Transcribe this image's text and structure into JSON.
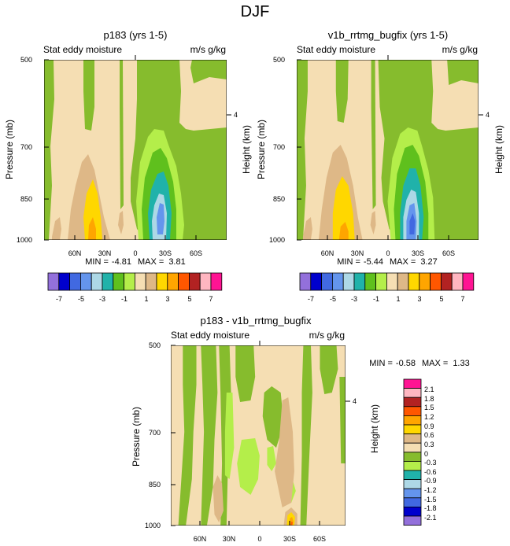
{
  "figure_title": "DJF",
  "colors": {
    "palette_panels": [
      "#9370db",
      "#0000cd",
      "#4169e1",
      "#6495ed",
      "#add8e6",
      "#20b2aa",
      "#5fc01d",
      "#b4ee4a",
      "#f5deb3",
      "#deb887",
      "#ffd700",
      "#ffa500",
      "#ff5700",
      "#b22222",
      "#ffb6c1",
      "#ff1493"
    ],
    "palette_diff": [
      "#9370db",
      "#0000cd",
      "#4169e1",
      "#6495ed",
      "#add8e6",
      "#20b2aa",
      "#b4ee4a",
      "#86bc2d",
      "#f5deb3",
      "#deb887",
      "#ffd700",
      "#ffa500",
      "#ff5700",
      "#b22222",
      "#ffb6c1",
      "#ff1493"
    ]
  },
  "chart_data": [
    {
      "type": "contour",
      "title": "p183 (yrs 1-5)",
      "subtitle_left": "Stat eddy moisture",
      "subtitle_right": "m/s g/kg",
      "ylabel": "Pressure (mb)",
      "ylabel_right": "Height (km)",
      "xticks": [
        "60N",
        "30N",
        "0",
        "30S",
        "60S"
      ],
      "yticks": [
        "500",
        "700",
        "850",
        "1000"
      ],
      "right_ticks": [
        "4"
      ],
      "min_label": "MIN =",
      "min_value": "-4.81",
      "max_label": "MAX =",
      "max_value": "3.81",
      "colorbar_labels": [
        "-7",
        "-5",
        "-3",
        "-1",
        "1",
        "3",
        "5",
        "7"
      ]
    },
    {
      "type": "contour",
      "title": "v1b_rrtmg_bugfix (yrs 1-5)",
      "subtitle_left": "Stat eddy moisture",
      "subtitle_right": "m/s g/kg",
      "ylabel": "Pressure (mb)",
      "ylabel_right": "Height (km)",
      "xticks": [
        "60N",
        "30N",
        "0",
        "30S",
        "60S"
      ],
      "yticks": [
        "500",
        "700",
        "850",
        "1000"
      ],
      "right_ticks": [
        "4"
      ],
      "min_label": "MIN =",
      "min_value": "-5.44",
      "max_label": "MAX =",
      "max_value": "3.27",
      "colorbar_labels": [
        "-7",
        "-5",
        "-3",
        "-1",
        "1",
        "3",
        "5",
        "7"
      ]
    },
    {
      "type": "contour",
      "title": "p183 - v1b_rrtmg_bugfix",
      "subtitle_left": "Stat eddy moisture",
      "subtitle_right": "m/s g/kg",
      "ylabel": "Pressure (mb)",
      "ylabel_right": "Height (km)",
      "xticks": [
        "60N",
        "30N",
        "0",
        "30S",
        "60S"
      ],
      "yticks": [
        "500",
        "700",
        "850",
        "1000"
      ],
      "right_ticks": [
        "4"
      ],
      "min_label": "MIN =",
      "min_value": "-0.58",
      "max_label": "MAX =",
      "max_value": "1.33",
      "colorbar_labels": [
        "2.1",
        "1.8",
        "1.5",
        "1.2",
        "0.9",
        "0.6",
        "0.3",
        "0",
        "-0.3",
        "-0.6",
        "-0.9",
        "-1.2",
        "-1.5",
        "-1.8",
        "-2.1"
      ]
    }
  ]
}
